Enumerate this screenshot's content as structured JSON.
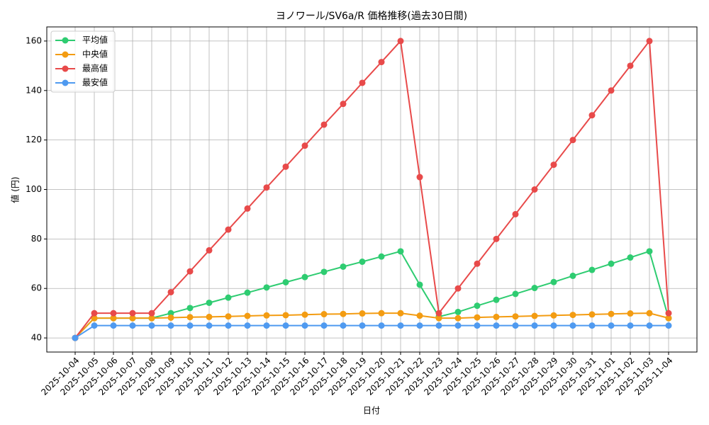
{
  "chart_data": {
    "type": "line",
    "title": "ヨノワール/SV6a/R 価格推移(過去30日間)",
    "xlabel": "日付",
    "ylabel": "値 (円)",
    "categories": [
      "2025-10-04",
      "2025-10-05",
      "2025-10-06",
      "2025-10-07",
      "2025-10-08",
      "2025-10-09",
      "2025-10-10",
      "2025-10-11",
      "2025-10-12",
      "2025-10-13",
      "2025-10-14",
      "2025-10-15",
      "2025-10-16",
      "2025-10-17",
      "2025-10-18",
      "2025-10-19",
      "2025-10-20",
      "2025-10-21",
      "2025-10-22",
      "2025-10-23",
      "2025-10-24",
      "2025-10-25",
      "2025-10-26",
      "2025-10-27",
      "2025-10-28",
      "2025-10-29",
      "2025-10-30",
      "2025-10-31",
      "2025-11-01",
      "2025-11-02",
      "2025-11-03",
      "2025-11-04"
    ],
    "series": [
      {
        "name": "平均値",
        "color": "#2ecc71",
        "values": [
          40,
          48,
          48,
          48,
          48,
          50,
          52.1,
          54.2,
          56.3,
          58.3,
          60.4,
          62.5,
          64.6,
          66.7,
          68.8,
          70.8,
          72.9,
          75,
          61.5,
          48.6,
          50.5,
          53,
          55.4,
          57.8,
          60.2,
          62.6,
          65.1,
          67.5,
          70,
          72.5,
          75,
          48
        ]
      },
      {
        "name": "中央値",
        "color": "#f39c12",
        "values": [
          40,
          48,
          48,
          48,
          48,
          48.2,
          48.4,
          48.5,
          48.7,
          48.9,
          49.1,
          49.2,
          49.4,
          49.6,
          49.7,
          49.9,
          50,
          50,
          49,
          48,
          48,
          48.3,
          48.5,
          48.7,
          48.9,
          49.1,
          49.3,
          49.5,
          49.7,
          49.9,
          50,
          48
        ]
      },
      {
        "name": "最高値",
        "color": "#e84a4a",
        "values": [
          40,
          50,
          50,
          50,
          50,
          58.5,
          66.9,
          75.4,
          83.8,
          92.3,
          100.8,
          109.2,
          117.7,
          126.2,
          134.6,
          143.1,
          151.5,
          160,
          105,
          50,
          60,
          70,
          80,
          90,
          100,
          110,
          120,
          130,
          140,
          150,
          160,
          50
        ]
      },
      {
        "name": "最安値",
        "color": "#4f9af0",
        "values": [
          40,
          45,
          45,
          45,
          45,
          45,
          45,
          45,
          45,
          45,
          45,
          45,
          45,
          45,
          45,
          45,
          45,
          45,
          45,
          45,
          45,
          45,
          45,
          45,
          45,
          45,
          45,
          45,
          45,
          45,
          45,
          45
        ]
      }
    ],
    "ylim": [
      34.3,
      165.7
    ],
    "yticks": [
      40,
      60,
      80,
      100,
      120,
      140,
      160
    ],
    "grid": true,
    "legend": "upper left"
  }
}
